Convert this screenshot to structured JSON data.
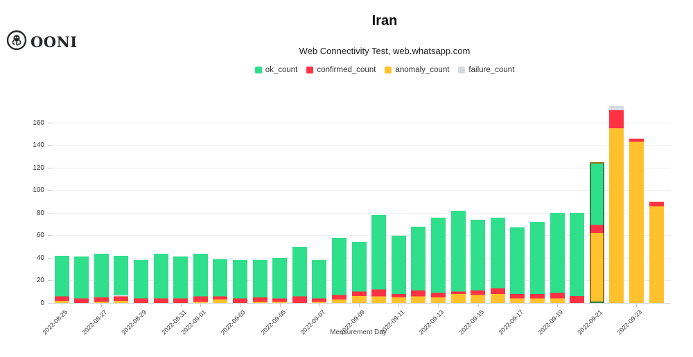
{
  "header": {
    "brand": "OONI",
    "title": "Iran",
    "subtitle": "Web Connectivity Test, web.whatsapp.com"
  },
  "legend": {
    "items": [
      {
        "name": "ok_count",
        "label": "ok_count"
      },
      {
        "name": "confirmed_count",
        "label": "confirmed_count"
      },
      {
        "name": "anomaly_count",
        "label": "anomaly_count"
      },
      {
        "name": "failure_count",
        "label": "failure_count"
      }
    ]
  },
  "colors": {
    "ok": "#2FDF8C",
    "confirmed": "#FF3243",
    "anomaly": "#FFC22E",
    "failure": "#D6DBE0",
    "selected_outline": "rgba(35,33,0,0.5)"
  },
  "chart_data": {
    "type": "bar",
    "stacked": true,
    "title": "Iran",
    "subtitle": "Web Connectivity Test, web.whatsapp.com",
    "xlabel": "Measurement Day",
    "ylabel": "",
    "ylim": [
      0,
      175
    ],
    "yticks": [
      0,
      20,
      40,
      60,
      80,
      100,
      120,
      140,
      160
    ],
    "grid": true,
    "legend_position": "top",
    "categories": [
      "2022-08-25",
      "2022-08-26",
      "2022-08-27",
      "2022-08-28",
      "2022-08-29",
      "2022-08-30",
      "2022-08-31",
      "2022-09-01",
      "2022-09-02",
      "2022-09-03",
      "2022-09-04",
      "2022-09-05",
      "2022-09-06",
      "2022-09-07",
      "2022-09-08",
      "2022-09-09",
      "2022-09-10",
      "2022-09-11",
      "2022-09-12",
      "2022-09-13",
      "2022-09-14",
      "2022-09-15",
      "2022-09-16",
      "2022-09-17",
      "2022-09-18",
      "2022-09-19",
      "2022-09-20",
      "2022-09-21",
      "2022-09-22",
      "2022-09-23",
      "2022-09-24"
    ],
    "tick_labels": [
      "2022-08-25",
      "2022-08-27",
      "2022-08-29",
      "2022-08-31",
      "2022-09-01",
      "2022-09-03",
      "2022-09-05",
      "2022-09-07",
      "2022-09-09",
      "2022-09-11",
      "2022-09-13",
      "2022-09-15",
      "2022-09-17",
      "2022-09-19",
      "2022-09-21",
      "2022-09-23"
    ],
    "series": [
      {
        "name": "anomaly_count",
        "color": "#FFC22E",
        "values": [
          2,
          0,
          1,
          2,
          0,
          0,
          0,
          1,
          3,
          0,
          1,
          1,
          0,
          1,
          3,
          6,
          6,
          5,
          6,
          5,
          8,
          7,
          8,
          4,
          4,
          4,
          0,
          61,
          155,
          143,
          86
        ]
      },
      {
        "name": "confirmed_count",
        "color": "#FF3243",
        "values": [
          4,
          4,
          4,
          4,
          4,
          4,
          4,
          5,
          3,
          4,
          4,
          3,
          6,
          3,
          4,
          4,
          6,
          3,
          5,
          4,
          2,
          4,
          5,
          4,
          4,
          5,
          6,
          7,
          16,
          3,
          4
        ]
      },
      {
        "name": "failure_count",
        "color": "#D6DBE0",
        "values": [
          0,
          0,
          0,
          1,
          0,
          0,
          0,
          0,
          0,
          0,
          0,
          0,
          0,
          0,
          0,
          0,
          0,
          0,
          0,
          0,
          0,
          0,
          0,
          0,
          0,
          0,
          0,
          0,
          4,
          0,
          0
        ]
      },
      {
        "name": "ok_count",
        "color": "#2FDF8C",
        "values": [
          36,
          37,
          39,
          35,
          34,
          40,
          37,
          38,
          33,
          34,
          33,
          36,
          44,
          34,
          51,
          44,
          66,
          52,
          57,
          67,
          72,
          63,
          63,
          59,
          64,
          71,
          74,
          57,
          0,
          0,
          0
        ]
      }
    ],
    "selected_bar": "2022-09-21"
  }
}
